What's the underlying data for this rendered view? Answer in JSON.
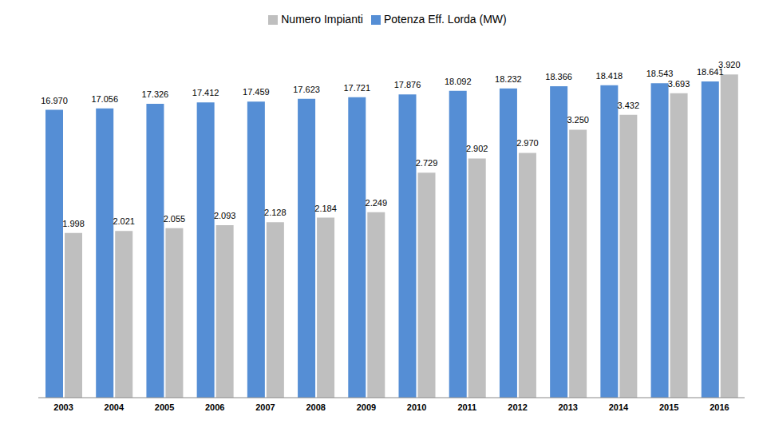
{
  "chart_data": {
    "type": "bar",
    "categories": [
      "2003",
      "2004",
      "2005",
      "2006",
      "2007",
      "2008",
      "2009",
      "2010",
      "2011",
      "2012",
      "2013",
      "2014",
      "2015",
      "2016"
    ],
    "series": [
      {
        "name": "Potenza Eff. Lorda (MW)",
        "color": "#558ED5",
        "values": [
          16970,
          17056,
          17326,
          17412,
          17459,
          17623,
          17721,
          17876,
          18092,
          18232,
          18366,
          18418,
          18543,
          18641
        ],
        "value_labels": [
          "16.970",
          "17.056",
          "17.326",
          "17.412",
          "17.459",
          "17.623",
          "17.721",
          "17.876",
          "18.092",
          "18.232",
          "18.366",
          "18.418",
          "18.543",
          "18.641"
        ]
      },
      {
        "name": "Numero Impianti",
        "color": "#BFBFBF",
        "axis": "y2",
        "values": [
          1998,
          2021,
          2055,
          2093,
          2128,
          2184,
          2249,
          2729,
          2902,
          2970,
          3250,
          3432,
          3693,
          3920
        ],
        "value_labels": [
          "1.998",
          "2.021",
          "2.055",
          "2.093",
          "2.128",
          "2.184",
          "2.249",
          "2.729",
          "2.902",
          "2.970",
          "3.250",
          "3.432",
          "3.693",
          "3.920"
        ]
      }
    ],
    "ylim": [
      0,
      21000
    ],
    "y2lim": [
      0,
      4320
    ],
    "data_labels": true,
    "legend": "top",
    "tick_labels": "x",
    "grid": false
  }
}
